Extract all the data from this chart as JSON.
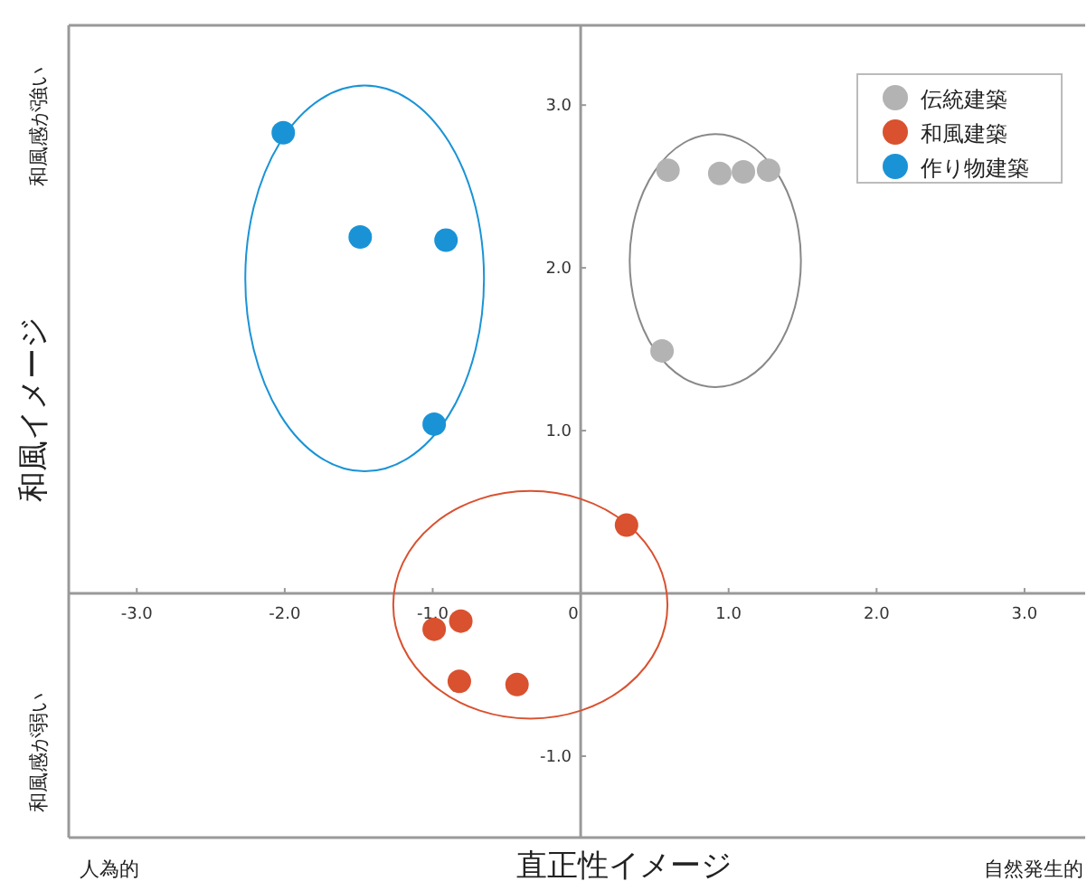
{
  "chart_data": {
    "type": "scatter",
    "xlabel": "直正性イメージ",
    "ylabel": "和風イメージ",
    "annotations": [
      "和風感が強い",
      "和風感が弱い",
      "人為的",
      "自然発生的"
    ],
    "series": [
      {
        "name": "伝統建築",
        "color": "#b3b3b3",
        "x": [
          0.59,
          0.94,
          1.1,
          1.27,
          0.55
        ],
        "values": [
          2.6,
          2.58,
          2.59,
          2.6,
          1.49
        ]
      },
      {
        "name": "和風建築",
        "color": "#d9512f",
        "x": [
          0.31,
          -0.99,
          -0.81,
          -0.82,
          -0.43
        ],
        "values": [
          0.42,
          -0.22,
          -0.17,
          -0.54,
          -0.56
        ]
      },
      {
        "name": "作り物建築",
        "color": "#1a93d6",
        "x": [
          -2.01,
          -1.49,
          -0.91,
          -0.99
        ],
        "values": [
          2.83,
          2.19,
          2.17,
          1.04
        ]
      }
    ],
    "xlim": [
      -3.46,
      3.41
    ],
    "ylim": [
      -1.5,
      3.49
    ],
    "xticks": [
      {
        "value": -3,
        "label": "-3.0"
      },
      {
        "value": -2,
        "label": "-2.0"
      },
      {
        "value": -1,
        "label": "-1.0"
      },
      {
        "value": 0,
        "label": "0"
      },
      {
        "value": 1,
        "label": "1.0"
      },
      {
        "value": 2,
        "label": "2.0"
      },
      {
        "value": 3,
        "label": "3.0"
      }
    ],
    "yticks": [
      {
        "value": -1,
        "label": "-1.0"
      },
      {
        "value": 1,
        "label": "1.0"
      },
      {
        "value": 2,
        "label": "2.0"
      },
      {
        "value": 3,
        "label": "3.0"
      }
    ],
    "legend": "top right",
    "marker": "circle",
    "grid": false
  }
}
